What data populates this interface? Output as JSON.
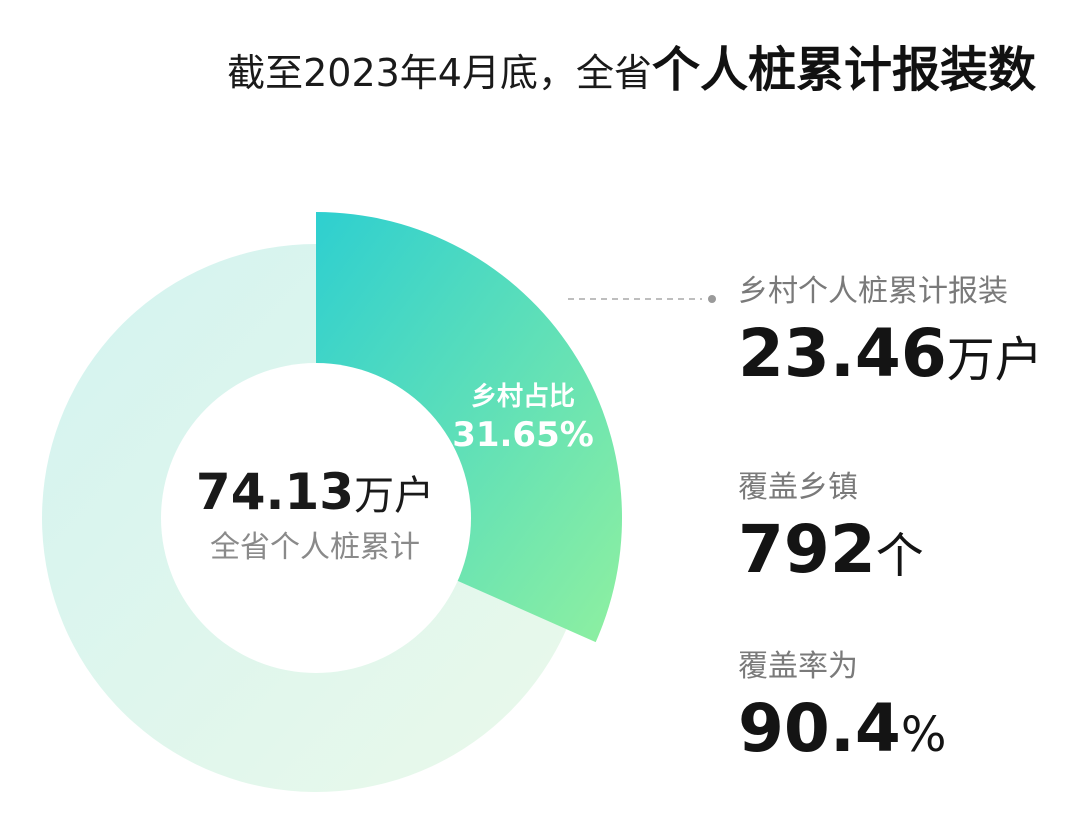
{
  "title": {
    "prefix": "截至2023年4月底，全省",
    "emphasis": "个人桩累计报装数"
  },
  "center": {
    "value": "74.13",
    "unit": "万户",
    "label": "全省个人桩累计"
  },
  "rural_share": {
    "label": "乡村占比",
    "value": "31.65%"
  },
  "stats": [
    {
      "label": "乡村个人桩累计报装",
      "value": "23.46",
      "unit": "万户"
    },
    {
      "label": "覆盖乡镇",
      "value": "792",
      "unit": "个"
    },
    {
      "label": "覆盖率为",
      "value": "90.4",
      "unit": "%"
    }
  ],
  "chart_data": {
    "type": "pie",
    "variant": "donut",
    "slices": [
      {
        "name": "乡村",
        "value": 31.65
      },
      {
        "name": "",
        "value": 68.35
      }
    ],
    "colors": {
      "rural_gradient": [
        "#2ecfd0",
        "#8ff0a0"
      ],
      "rest_gradient": [
        "#d3f3f0",
        "#eaf9ea"
      ],
      "center_fill": "#ffffff",
      "leader_line": "#a8a8a8"
    }
  }
}
